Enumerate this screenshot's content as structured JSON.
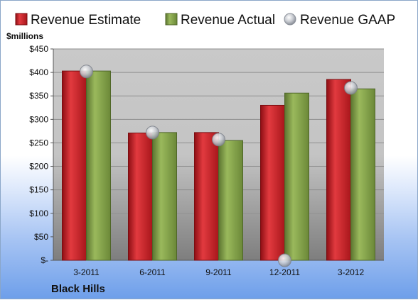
{
  "chart_data": {
    "type": "bar",
    "unit_label": "$millions",
    "company": "Black Hills",
    "categories": [
      "3-2011",
      "6-2011",
      "9-2011",
      "12-2011",
      "3-2012"
    ],
    "series": [
      {
        "name": "Revenue Estimate",
        "kind": "bar",
        "color": "#cc1f25",
        "values": [
          403,
          271,
          272,
          330,
          385
        ]
      },
      {
        "name": "Revenue Actual",
        "kind": "bar",
        "color": "#7f9d44",
        "values": [
          403,
          272,
          255,
          356,
          365
        ]
      },
      {
        "name": "Revenue GAAP",
        "kind": "marker",
        "color": "#b8bcc4",
        "values": [
          402,
          272,
          257,
          0,
          367
        ]
      }
    ],
    "ylim": [
      0,
      450
    ],
    "yticks": [
      0,
      50,
      100,
      150,
      200,
      250,
      300,
      350,
      400,
      450
    ],
    "ytick_labels": [
      "$-",
      "$50",
      "$100",
      "$150",
      "$200",
      "$250",
      "$300",
      "$350",
      "$400",
      "$450"
    ],
    "grid": true,
    "legend": "top"
  }
}
